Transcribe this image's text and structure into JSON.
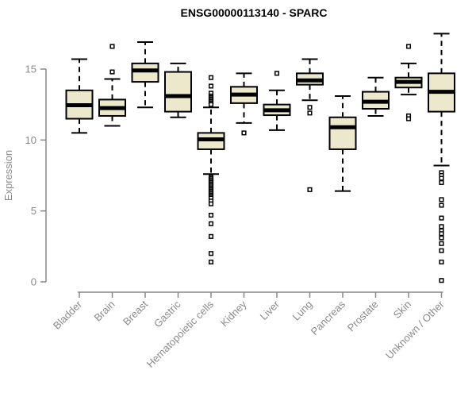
{
  "chart_data": {
    "type": "boxplot",
    "title": "ENSG00000113140 - SPARC",
    "ylabel": "Expression",
    "xlabel": "",
    "ylim": [
      0,
      17.8
    ],
    "yticks": [
      0,
      5,
      10,
      15
    ],
    "grid": false,
    "legend": "none",
    "categories": [
      "Bladder",
      "Brain",
      "Breast",
      "Gastric",
      "Hematopoietic cells",
      "Kidney",
      "Liver",
      "Lung",
      "Pancreas",
      "Prostate",
      "Skin",
      "Unknown / Other"
    ],
    "series": [
      {
        "category": "Bladder",
        "low": 10.5,
        "q1": 11.5,
        "median": 12.45,
        "q3": 13.5,
        "high": 15.7,
        "outliers": []
      },
      {
        "category": "Brain",
        "low": 11.0,
        "q1": 11.7,
        "median": 12.25,
        "q3": 12.85,
        "high": 14.3,
        "outliers": [
          16.6,
          14.8
        ]
      },
      {
        "category": "Breast",
        "low": 12.3,
        "q1": 14.1,
        "median": 14.9,
        "q3": 15.4,
        "high": 16.9,
        "outliers": []
      },
      {
        "category": "Gastric",
        "low": 11.6,
        "q1": 12.0,
        "median": 13.1,
        "q3": 14.8,
        "high": 15.4,
        "outliers": []
      },
      {
        "category": "Hematopoietic cells",
        "low": 7.6,
        "q1": 9.35,
        "median": 10.05,
        "q3": 10.5,
        "high": 12.3,
        "outliers": [
          14.4,
          13.8,
          13.3,
          13.1,
          13.0,
          12.9,
          12.8,
          12.7,
          12.6,
          12.5,
          7.4,
          7.3,
          7.2,
          7.1,
          7.0,
          6.9,
          6.8,
          6.7,
          6.6,
          6.5,
          6.4,
          6.3,
          6.2,
          6.1,
          6.0,
          5.9,
          5.7,
          5.5,
          4.7,
          4.1,
          3.2,
          2.0,
          1.4
        ]
      },
      {
        "category": "Kidney",
        "low": 11.2,
        "q1": 12.6,
        "median": 13.2,
        "q3": 13.75,
        "high": 14.7,
        "outliers": [
          10.5
        ]
      },
      {
        "category": "Liver",
        "low": 10.7,
        "q1": 11.75,
        "median": 12.1,
        "q3": 12.5,
        "high": 13.5,
        "outliers": [
          14.7
        ]
      },
      {
        "category": "Lung",
        "low": 12.8,
        "q1": 13.9,
        "median": 14.2,
        "q3": 14.7,
        "high": 15.7,
        "outliers": [
          12.3,
          11.9,
          6.5
        ]
      },
      {
        "category": "Pancreas",
        "low": 6.4,
        "q1": 9.35,
        "median": 10.9,
        "q3": 11.6,
        "high": 13.1,
        "outliers": []
      },
      {
        "category": "Prostate",
        "low": 11.7,
        "q1": 12.2,
        "median": 12.7,
        "q3": 13.4,
        "high": 14.4,
        "outliers": []
      },
      {
        "category": "Skin",
        "low": 13.2,
        "q1": 13.7,
        "median": 14.1,
        "q3": 14.4,
        "high": 15.4,
        "outliers": [
          16.6,
          11.7,
          11.5
        ]
      },
      {
        "category": "Unknown / Other",
        "low": 8.2,
        "q1": 12.0,
        "median": 13.4,
        "q3": 14.7,
        "high": 17.5,
        "outliers": [
          7.7,
          7.5,
          7.3,
          7.0,
          5.8,
          5.4,
          4.5,
          3.9,
          3.6,
          3.4,
          3.1,
          2.7,
          2.2,
          1.4,
          0.1
        ]
      }
    ],
    "colors": {
      "box_fill": "#ece8cb",
      "box_stroke": "#000000",
      "median": "#000000",
      "whisker": "#000000",
      "outlier_stroke": "#000000",
      "outlier_fill": "#ffffff",
      "axis": "#888888",
      "tick_text": "#8a8a8a",
      "title_text": "#000000",
      "background": "#ffffff"
    }
  }
}
